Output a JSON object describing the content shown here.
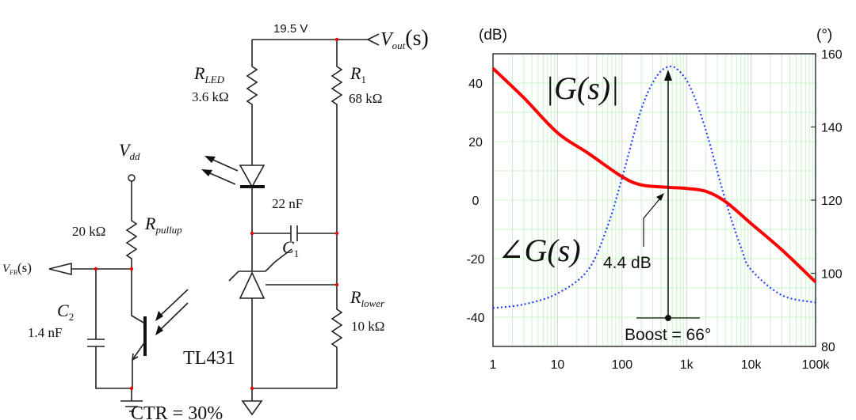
{
  "circuit": {
    "rail_voltage": "19.5 V",
    "vout_label": {
      "main": "V",
      "sub": "out",
      "arg": "(s)"
    },
    "rled": {
      "main": "R",
      "sub": "LED",
      "value": "3.6 kΩ"
    },
    "r1": {
      "main": "R",
      "sub": "1",
      "value": "68 kΩ"
    },
    "cap_22n": "22 nF",
    "c1": {
      "main": "C",
      "sub": "1"
    },
    "rlower": {
      "main": "R",
      "sub": "lower",
      "value": "10 kΩ"
    },
    "tl431": "TL431",
    "vdd": {
      "main": "V",
      "sub": "dd"
    },
    "rpullup": {
      "main": "R",
      "sub": "pullup",
      "value": "20 kΩ"
    },
    "vfb": {
      "main": "V",
      "sub": "FB",
      "arg": "(s)"
    },
    "c2": {
      "main": "C",
      "sub": "2",
      "value": "1.4 nF"
    },
    "ctr": "CTR = 30%"
  },
  "chart_data": {
    "type": "line",
    "xscale": "log",
    "xlim": [
      1,
      100000
    ],
    "xticks": [
      "1",
      "10",
      "100",
      "1k",
      "10k",
      "100k"
    ],
    "ylabel_left": "(dB)",
    "ylim_left": [
      -50,
      50
    ],
    "yticks_left": [
      "40",
      "20",
      "0",
      "-20",
      "-40"
    ],
    "ylabel_right": "(°)",
    "ylim_right": [
      80,
      160
    ],
    "yticks_right": [
      "160",
      "140",
      "120",
      "100",
      "80"
    ],
    "grid": true,
    "series": [
      {
        "name": "|G(s)|",
        "axis": "left",
        "color": "#ff0000",
        "style": "solid",
        "x": [
          1,
          3,
          10,
          30,
          100,
          200,
          500,
          1000,
          2000,
          4000,
          10000,
          30000,
          100000
        ],
        "y": [
          45,
          35,
          23,
          16,
          8,
          5.2,
          4.4,
          4.0,
          3.0,
          -0.5,
          -8,
          -17,
          -28
        ]
      },
      {
        "name": "∠G(s)",
        "axis": "right",
        "color": "#2a3cff",
        "style": "dotted",
        "x": [
          1,
          3,
          10,
          30,
          60,
          100,
          200,
          350,
          550,
          800,
          1200,
          2000,
          4000,
          7000,
          10000,
          30000,
          100000
        ],
        "y": [
          90.5,
          91.5,
          94.5,
          101,
          113,
          126,
          145,
          154,
          156.5,
          155,
          150,
          139,
          120,
          107,
          101,
          94,
          92
        ]
      }
    ],
    "annotations": {
      "mag_label": "|G(s)|",
      "phase_label": "∠G(s)",
      "gain_at_peak": "4.4 dB",
      "boost": "Boost = 66°"
    }
  }
}
